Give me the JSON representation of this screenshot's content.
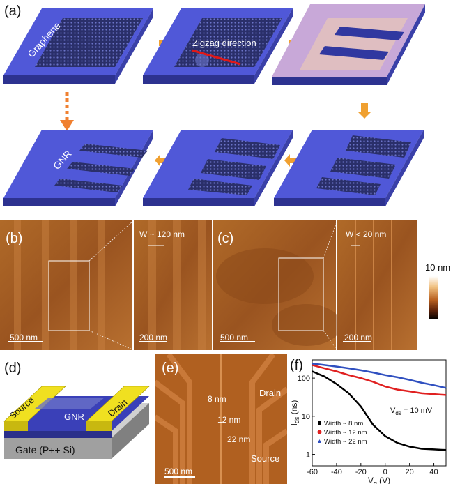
{
  "panel_a": {
    "label": "(a)",
    "graphene_label": "Graphene",
    "zigzag_label": "Zigzag direction",
    "gnr_label": "GNR"
  },
  "panel_b": {
    "label": "(b)",
    "scale_main": "500 nm",
    "scale_zoom": "200 nm",
    "width_label": "W ~ 120 nm"
  },
  "panel_c": {
    "label": "(c)",
    "scale_main": "500 nm",
    "scale_zoom": "200 nm",
    "width_label": "W < 20 nm"
  },
  "colorbar": {
    "label": "10 nm"
  },
  "panel_d": {
    "label": "(d)",
    "source": "Source",
    "drain": "Drain",
    "gnr": "GNR",
    "gate": "Gate (P++ Si)"
  },
  "panel_e": {
    "label": "(e)",
    "drain": "Drain",
    "source": "Source",
    "w8": "8 nm",
    "w12": "12 nm",
    "w22": "22 nm",
    "scale": "500 nm"
  },
  "panel_f": {
    "label": "(f)",
    "annotation": "V_ds = 10 mV"
  },
  "chart_data": {
    "type": "line",
    "xlabel": "V_g (V)",
    "ylabel": "I_ds (ns)",
    "xlim": [
      -60,
      50
    ],
    "ylim": [
      0.5,
      300
    ],
    "yscale": "log",
    "xticks": [
      -60,
      -40,
      -20,
      0,
      20,
      40
    ],
    "yticks": [
      1,
      10,
      100
    ],
    "legend_position": "bottom-left",
    "series": [
      {
        "name": "Width ~ 8 nm",
        "color": "#000000",
        "x": [
          -60,
          -50,
          -40,
          -30,
          -20,
          -10,
          0,
          10,
          20,
          30,
          40,
          50
        ],
        "y": [
          150,
          110,
          70,
          40,
          18,
          6,
          3,
          2,
          1.6,
          1.4,
          1.35,
          1.3
        ]
      },
      {
        "name": "Width ~ 12 nm",
        "color": "#e02020",
        "x": [
          -60,
          -50,
          -40,
          -30,
          -20,
          -10,
          0,
          10,
          20,
          30,
          40,
          50
        ],
        "y": [
          220,
          180,
          150,
          120,
          100,
          80,
          60,
          50,
          45,
          40,
          38,
          36
        ]
      },
      {
        "name": "Width ~ 22 nm",
        "color": "#3050c0",
        "x": [
          -60,
          -50,
          -40,
          -30,
          -20,
          -10,
          0,
          10,
          20,
          30,
          40,
          50
        ],
        "y": [
          240,
          220,
          200,
          180,
          160,
          140,
          120,
          105,
          90,
          75,
          65,
          55
        ]
      }
    ]
  }
}
